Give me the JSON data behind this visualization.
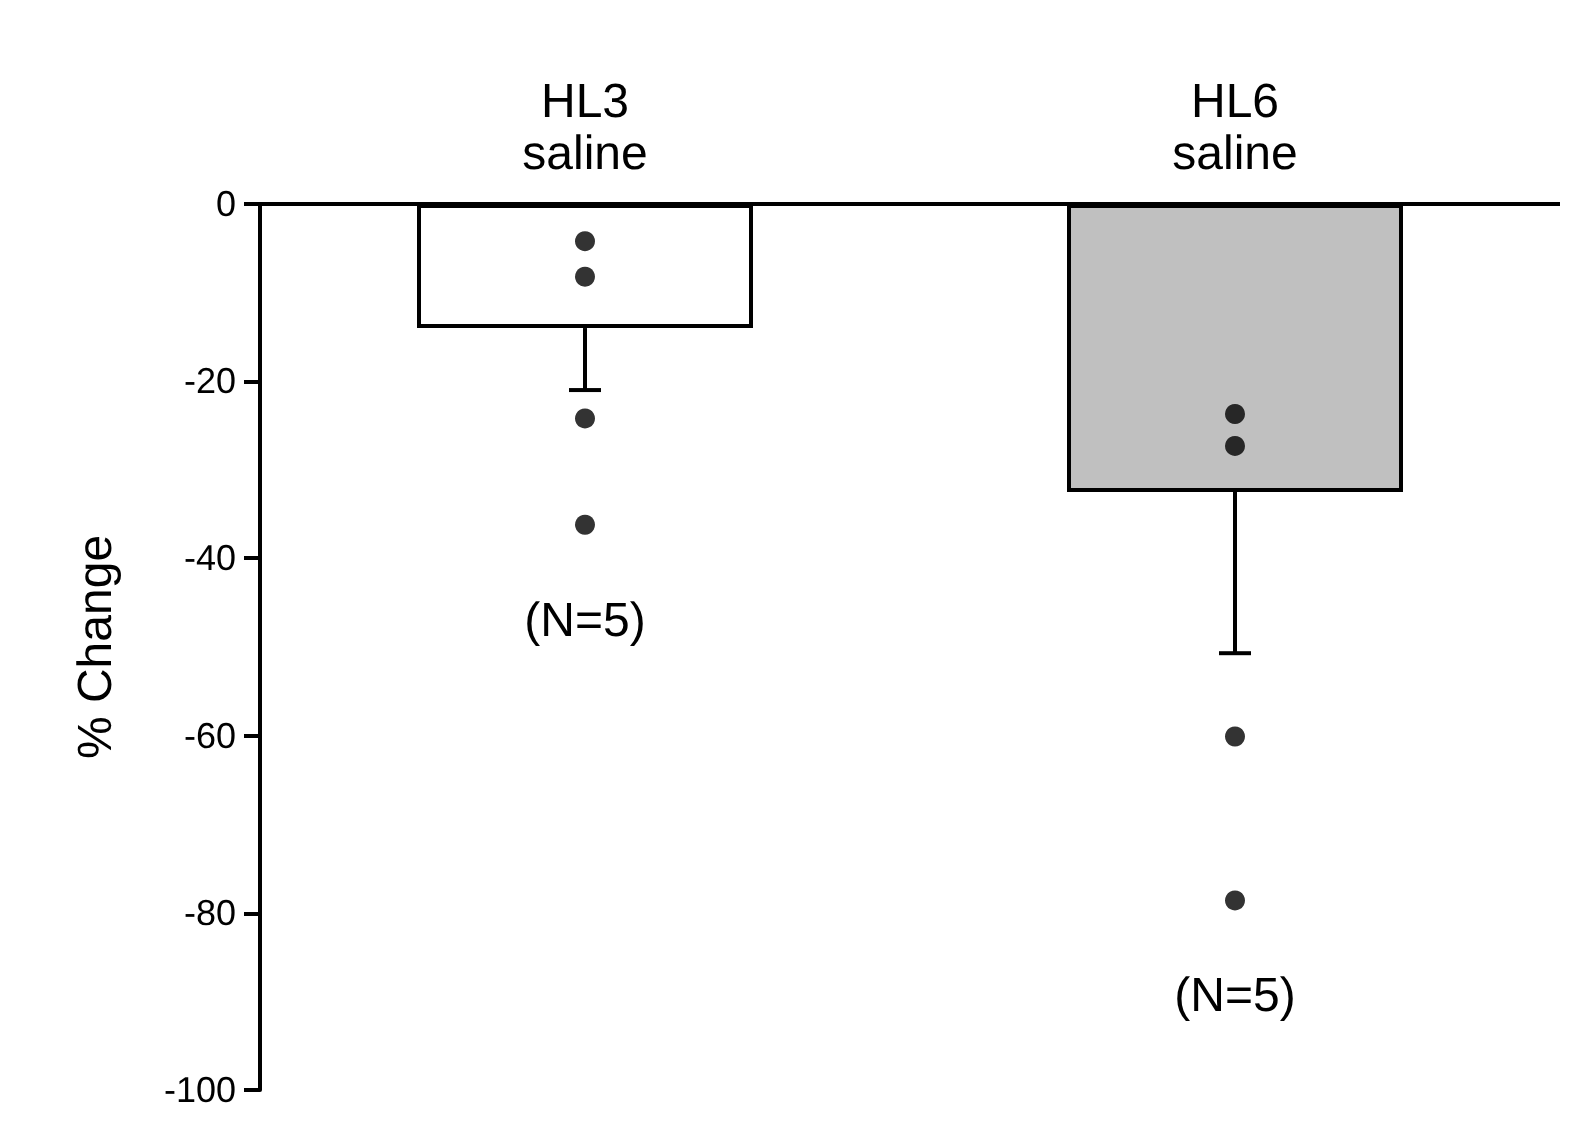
{
  "chart_data": {
    "type": "bar",
    "ylabel": "% Change",
    "categories": [
      "HL3\nsaline",
      "HL6\nsaline"
    ],
    "series": [
      {
        "values": [
          -14,
          -32.5
        ],
        "colors": [
          "#ffffff",
          "#c0c0c0"
        ],
        "errors": [
          [
            -21,
            -14
          ],
          [
            -50.7,
            -32.5
          ]
        ]
      },
      {
        "type": "scatter",
        "color": "#000000",
        "x": [
          "HL3\nsaline",
          "HL3\nsaline",
          "HL3\nsaline",
          "HL3\nsaline",
          "HL6\nsaline",
          "HL6\nsaline",
          "HL6\nsaline",
          "HL6\nsaline"
        ],
        "values": [
          -4.2,
          -8.2,
          -24.2,
          -36.2,
          -23.7,
          -27.3,
          -60.1,
          -78.6
        ]
      }
    ],
    "ylim": [
      -100,
      0
    ],
    "yticks": [
      -100,
      -80,
      -60,
      -40,
      -20,
      0
    ],
    "grid": false,
    "marker": "circle",
    "annotations": [
      "(N=5)",
      "(N=5)"
    ]
  }
}
